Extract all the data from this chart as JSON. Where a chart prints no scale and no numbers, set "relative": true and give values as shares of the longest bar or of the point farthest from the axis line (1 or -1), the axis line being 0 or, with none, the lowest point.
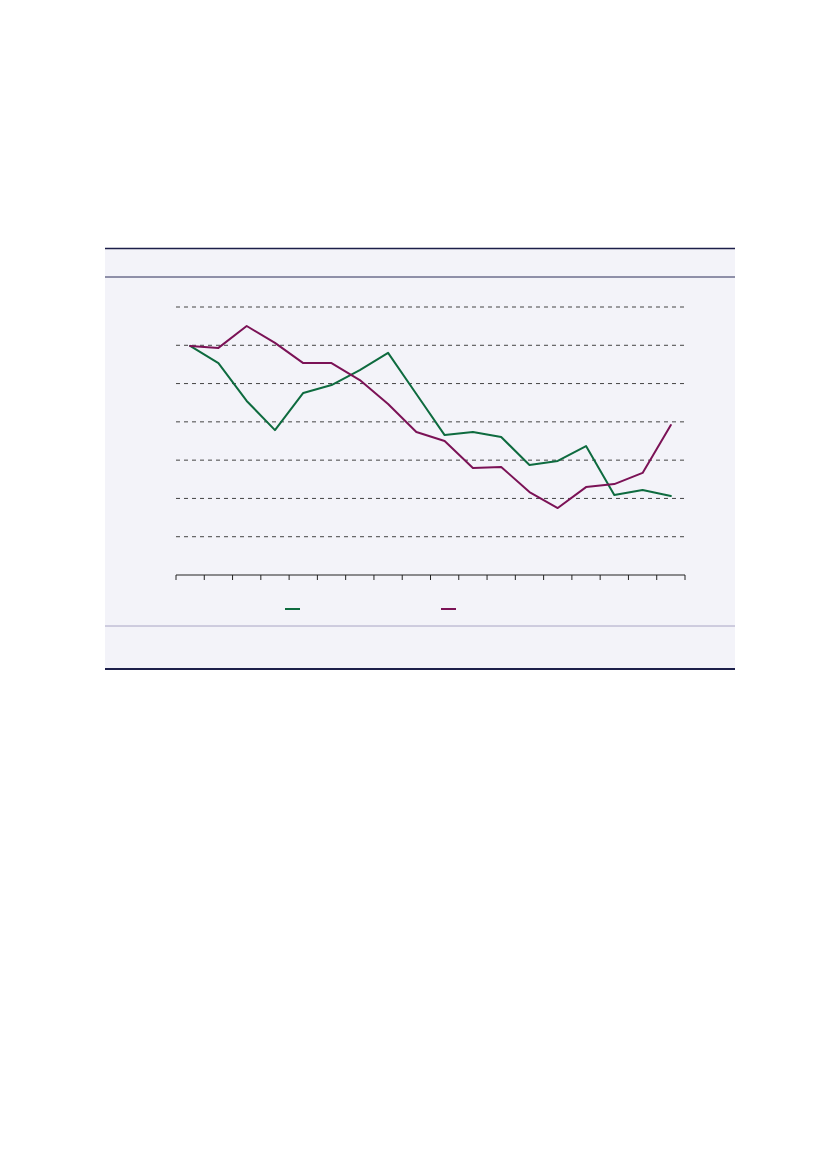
{
  "chart_data": {
    "type": "line",
    "relative": true,
    "grid": "y",
    "categories": [
      null,
      null,
      null,
      null,
      null,
      null,
      null,
      null,
      null,
      null,
      null,
      null,
      null,
      null,
      null,
      null,
      null,
      null
    ],
    "series": [
      {
        "color": "#0e6b3f",
        "values": [
          0.92,
          0.851,
          0.699,
          0.582,
          0.731,
          0.763,
          0.823,
          0.892,
          0.727,
          0.562,
          0.574,
          0.554,
          0.442,
          0.458,
          0.518,
          0.321,
          0.341,
          0.317
        ]
      },
      {
        "color": "#7b1256",
        "values": [
          0.92,
          0.912,
          1,
          0.932,
          0.851,
          0.851,
          0.783,
          0.687,
          0.574,
          0.538,
          0.43,
          0.434,
          0.333,
          0.269,
          0.353,
          0.365,
          0.41,
          0.602
        ]
      }
    ]
  }
}
